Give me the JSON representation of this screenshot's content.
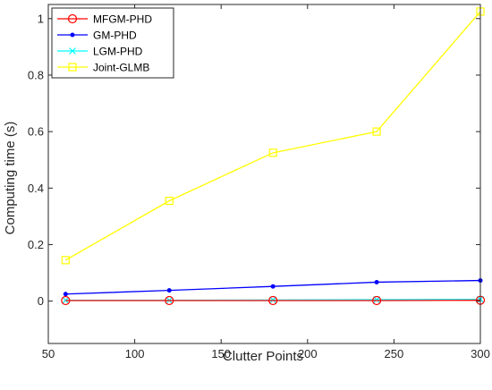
{
  "chart_data": {
    "type": "line",
    "xlabel": "Clutter Points",
    "ylabel": "Computing time (s)",
    "xlim": [
      50,
      300
    ],
    "ylim": [
      -0.15,
      1.05
    ],
    "x_ticks": [
      50,
      100,
      150,
      200,
      250,
      300
    ],
    "y_ticks": [
      0,
      0.2,
      0.4,
      0.6,
      0.8,
      1
    ],
    "grid": false,
    "legend_position": "top-left",
    "x": [
      60,
      120,
      180,
      240,
      300
    ],
    "series": [
      {
        "name": "MFGM-PHD",
        "color": "#ff0000",
        "marker": "circle",
        "values": [
          0.002,
          0.002,
          0.002,
          0.002,
          0.003
        ]
      },
      {
        "name": "GM-PHD",
        "color": "#0000ff",
        "marker": "dot",
        "values": [
          0.025,
          0.038,
          0.052,
          0.067,
          0.073
        ]
      },
      {
        "name": "LGM-PHD",
        "color": "#00ffff",
        "marker": "cross",
        "values": [
          0.003,
          0.003,
          0.004,
          0.005,
          0.006
        ]
      },
      {
        "name": "Joint-GLMB",
        "color": "#ffff00",
        "marker": "square",
        "values": [
          0.145,
          0.355,
          0.525,
          0.6,
          1.025
        ]
      }
    ]
  }
}
